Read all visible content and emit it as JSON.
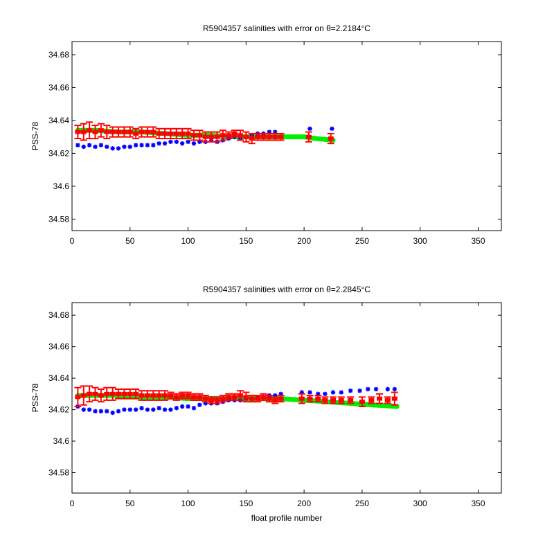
{
  "chart_data": [
    {
      "type": "scatter",
      "title": "R5904357 salinities with error on θ=2.2184°C",
      "xlabel": "",
      "ylabel": "PSS-78",
      "xlim": [
        0,
        370
      ],
      "ylim": [
        34.573,
        34.688
      ],
      "xticks": [
        0,
        50,
        100,
        150,
        200,
        250,
        300,
        350
      ],
      "yticks": [
        34.58,
        34.6,
        34.62,
        34.64,
        34.66,
        34.68
      ],
      "ytick_labels": [
        "34.58",
        "34.6",
        "34.62",
        "34.64",
        "34.66",
        "34.68"
      ],
      "grid": false,
      "colors": {
        "blue": "#0000ff",
        "green": "#00ee00",
        "red": "#ff0000"
      },
      "series": [
        {
          "color": "green",
          "marker": "band",
          "x": [
            5,
            20,
            40,
            60,
            80,
            100,
            120,
            140,
            160,
            180,
            200,
            210,
            225
          ],
          "y": [
            34.634,
            34.634,
            34.633,
            34.633,
            34.632,
            34.631,
            34.631,
            34.63,
            34.63,
            34.63,
            34.63,
            34.629,
            34.628
          ]
        },
        {
          "color": "blue",
          "marker": "star",
          "x": [
            5,
            10,
            15,
            20,
            25,
            30,
            35,
            40,
            45,
            50,
            55,
            60,
            65,
            70,
            75,
            80,
            85,
            90,
            95,
            100,
            105,
            110,
            115,
            120,
            125,
            130,
            135,
            140,
            145,
            150,
            155,
            160,
            165,
            170,
            175,
            205,
            224
          ],
          "y": [
            34.625,
            34.624,
            34.625,
            34.624,
            34.625,
            34.624,
            34.623,
            34.623,
            34.624,
            34.624,
            34.625,
            34.625,
            34.625,
            34.625,
            34.626,
            34.626,
            34.627,
            34.627,
            34.626,
            34.627,
            34.626,
            34.627,
            34.627,
            34.628,
            34.627,
            34.628,
            34.629,
            34.63,
            34.629,
            34.63,
            34.631,
            34.632,
            34.632,
            34.633,
            34.633,
            34.635,
            34.635
          ]
        },
        {
          "color": "red",
          "marker": "errorbar",
          "x": [
            5,
            10,
            15,
            20,
            25,
            30,
            35,
            40,
            45,
            50,
            55,
            60,
            65,
            70,
            75,
            80,
            85,
            90,
            95,
            100,
            105,
            110,
            115,
            120,
            125,
            130,
            135,
            140,
            145,
            150,
            155,
            160,
            165,
            170,
            175,
            180,
            204,
            223
          ],
          "y": [
            34.633,
            34.633,
            34.634,
            34.633,
            34.634,
            34.633,
            34.633,
            34.633,
            34.633,
            34.633,
            34.632,
            34.633,
            34.633,
            34.633,
            34.632,
            34.632,
            34.632,
            34.632,
            34.632,
            34.632,
            34.631,
            34.631,
            34.63,
            34.63,
            34.63,
            34.631,
            34.631,
            34.632,
            34.631,
            34.63,
            34.629,
            34.63,
            34.63,
            34.63,
            34.63,
            34.63,
            34.63,
            34.629
          ],
          "err": [
            0.004,
            0.005,
            0.005,
            0.004,
            0.004,
            0.004,
            0.003,
            0.003,
            0.003,
            0.003,
            0.003,
            0.003,
            0.003,
            0.003,
            0.003,
            0.003,
            0.003,
            0.003,
            0.003,
            0.003,
            0.003,
            0.003,
            0.003,
            0.003,
            0.003,
            0.003,
            0.002,
            0.002,
            0.003,
            0.003,
            0.003,
            0.002,
            0.002,
            0.002,
            0.002,
            0.002,
            0.003,
            0.003
          ]
        }
      ]
    },
    {
      "type": "scatter",
      "title": "R5904357 salinities with error on θ=2.2845°C",
      "xlabel": "float profile number",
      "ylabel": "PSS-78",
      "xlim": [
        0,
        370
      ],
      "ylim": [
        34.567,
        34.688
      ],
      "xticks": [
        0,
        50,
        100,
        150,
        200,
        250,
        300,
        350
      ],
      "yticks": [
        34.58,
        34.6,
        34.62,
        34.64,
        34.66,
        34.68
      ],
      "ytick_labels": [
        "34.58",
        "34.6",
        "34.62",
        "34.64",
        "34.66",
        "34.68"
      ],
      "grid": false,
      "colors": {
        "blue": "#0000ff",
        "green": "#00ee00",
        "red": "#ff0000"
      },
      "series": [
        {
          "color": "green",
          "marker": "band",
          "x": [
            5,
            20,
            40,
            60,
            80,
            100,
            120,
            140,
            160,
            180,
            200,
            220,
            240,
            260,
            280
          ],
          "y": [
            34.629,
            34.629,
            34.629,
            34.628,
            34.628,
            34.627,
            34.627,
            34.627,
            34.627,
            34.627,
            34.626,
            34.625,
            34.624,
            34.623,
            34.622
          ]
        },
        {
          "color": "blue",
          "marker": "star",
          "x": [
            5,
            10,
            15,
            20,
            25,
            30,
            35,
            40,
            45,
            50,
            55,
            60,
            65,
            70,
            75,
            80,
            85,
            90,
            95,
            100,
            105,
            110,
            115,
            120,
            125,
            130,
            135,
            140,
            145,
            150,
            155,
            160,
            165,
            170,
            175,
            180,
            198,
            205,
            212,
            218,
            225,
            232,
            240,
            248,
            255,
            262,
            272,
            278
          ],
          "y": [
            34.622,
            34.62,
            34.62,
            34.619,
            34.619,
            34.619,
            34.618,
            34.619,
            34.62,
            34.62,
            34.62,
            34.621,
            34.62,
            34.62,
            34.621,
            34.62,
            34.62,
            34.621,
            34.622,
            34.622,
            34.621,
            34.623,
            34.624,
            34.624,
            34.624,
            34.625,
            34.626,
            34.626,
            34.626,
            34.627,
            34.627,
            34.628,
            34.628,
            34.629,
            34.629,
            34.63,
            34.631,
            34.631,
            34.63,
            34.63,
            34.631,
            34.631,
            34.632,
            34.632,
            34.633,
            34.633,
            34.633,
            34.633
          ],
          "err": []
        },
        {
          "color": "red",
          "marker": "errorbar",
          "x": [
            5,
            10,
            15,
            20,
            25,
            30,
            35,
            40,
            45,
            50,
            55,
            60,
            65,
            70,
            75,
            80,
            85,
            90,
            95,
            100,
            105,
            110,
            115,
            120,
            125,
            130,
            135,
            140,
            145,
            150,
            155,
            160,
            165,
            170,
            175,
            180,
            198,
            205,
            212,
            218,
            225,
            232,
            240,
            250,
            258,
            265,
            272,
            278
          ],
          "y": [
            34.628,
            34.629,
            34.63,
            34.63,
            34.629,
            34.63,
            34.63,
            34.63,
            34.63,
            34.63,
            34.63,
            34.629,
            34.629,
            34.629,
            34.629,
            34.629,
            34.629,
            34.628,
            34.629,
            34.629,
            34.628,
            34.628,
            34.627,
            34.626,
            34.626,
            34.627,
            34.628,
            34.628,
            34.629,
            34.628,
            34.627,
            34.627,
            34.628,
            34.627,
            34.626,
            34.627,
            34.627,
            34.627,
            34.627,
            34.626,
            34.626,
            34.626,
            34.626,
            34.625,
            34.626,
            34.627,
            34.626,
            34.627
          ],
          "err": [
            0.006,
            0.006,
            0.005,
            0.004,
            0.004,
            0.004,
            0.004,
            0.003,
            0.003,
            0.003,
            0.003,
            0.003,
            0.003,
            0.003,
            0.003,
            0.003,
            0.002,
            0.002,
            0.002,
            0.002,
            0.002,
            0.002,
            0.002,
            0.002,
            0.002,
            0.002,
            0.002,
            0.002,
            0.003,
            0.003,
            0.002,
            0.002,
            0.002,
            0.002,
            0.002,
            0.002,
            0.003,
            0.002,
            0.002,
            0.002,
            0.002,
            0.002,
            0.002,
            0.003,
            0.002,
            0.003,
            0.002,
            0.004
          ]
        }
      ]
    }
  ]
}
